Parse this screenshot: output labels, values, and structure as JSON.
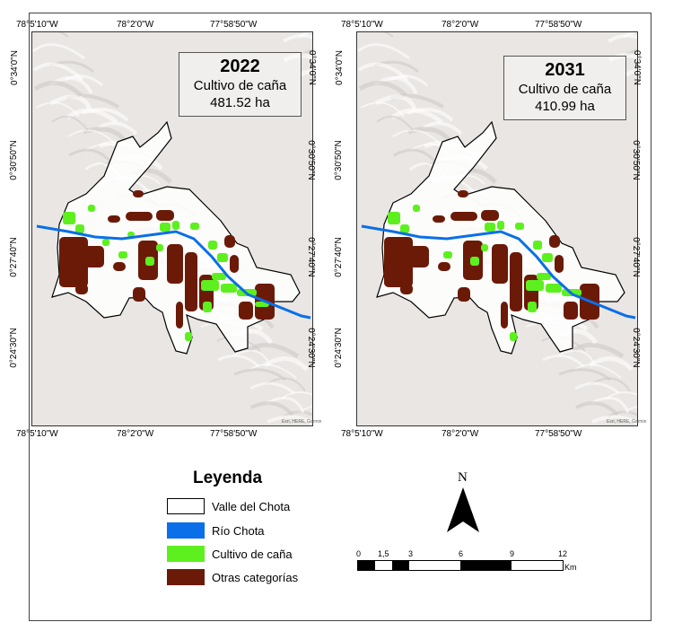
{
  "maps": [
    {
      "year": "2022",
      "subtitle": "Cultivo de caña",
      "area": "481.52 ha",
      "credit": "Esri, HERE, Garmin"
    },
    {
      "year": "2031",
      "subtitle": "Cultivo de caña",
      "area": "410.99 ha",
      "credit": "Esri, HERE, Garmin"
    }
  ],
  "lon_labels": [
    "78°5'10\"W",
    "78°2'0\"W",
    "77°58'50\"W"
  ],
  "lat_labels": [
    "0°34'0\"N",
    "0°30'50\"N",
    "0°27'40\"N",
    "0°24'30\"N"
  ],
  "legend": {
    "title": "Leyenda",
    "items": [
      {
        "label": "Valle del Chota",
        "color": "#ffffff"
      },
      {
        "label": "Río Chota",
        "color": "#0a6fe8"
      },
      {
        "label": "Cultivo de caña",
        "color": "#5ef01e"
      },
      {
        "label": "Otras categorías",
        "color": "#6b1a08"
      }
    ]
  },
  "north_label": "N",
  "scale": {
    "ticks": [
      "0",
      "1,5",
      "3",
      "6",
      "9",
      "12"
    ],
    "unit": "Km"
  }
}
